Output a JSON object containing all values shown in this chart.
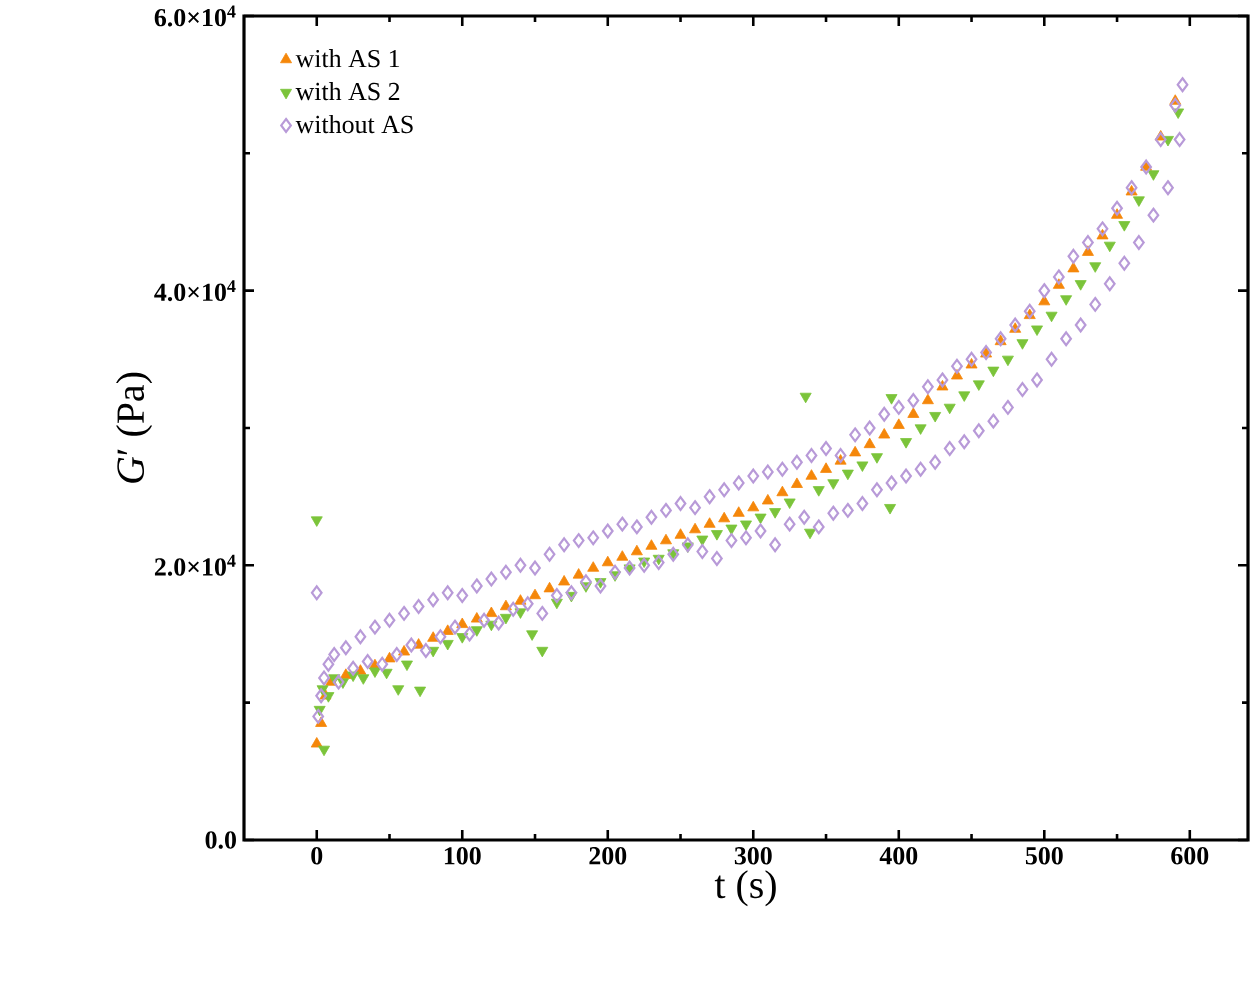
{
  "chart_data": {
    "type": "scatter",
    "xlabel": "t (s)",
    "ylabel": "*G*′ (Pa)",
    "xlim": [
      -50,
      640
    ],
    "ylim": [
      0,
      60000
    ],
    "xticks": [
      0,
      100,
      200,
      300,
      400,
      500,
      600
    ],
    "yticks": [
      {
        "value": 0,
        "label": "0.0"
      },
      {
        "value": 20000,
        "label": "2.0×10$^{4}$"
      },
      {
        "value": 40000,
        "label": "4.0×10$^{4}$"
      },
      {
        "value": 60000,
        "label": "6.0×10$^{4}$"
      }
    ],
    "legend": "top left",
    "grid": false,
    "series": [
      {
        "name": "with AS 1",
        "color": "#f5870a",
        "marker": "triangle",
        "x": [
          0,
          3,
          6,
          10,
          20,
          30,
          40,
          50,
          60,
          70,
          80,
          90,
          100,
          110,
          120,
          130,
          140,
          150,
          160,
          170,
          180,
          190,
          200,
          210,
          220,
          230,
          240,
          250,
          260,
          270,
          280,
          290,
          300,
          310,
          320,
          330,
          340,
          350,
          360,
          370,
          380,
          390,
          400,
          410,
          420,
          430,
          440,
          450,
          460,
          470,
          480,
          490,
          500,
          510,
          520,
          530,
          540,
          550,
          560,
          570,
          580,
          590
        ],
        "values": [
          7000,
          8500,
          10500,
          11500,
          12000,
          12300,
          12700,
          13200,
          13700,
          14200,
          14700,
          15200,
          15700,
          16100,
          16500,
          17000,
          17400,
          17800,
          18300,
          18800,
          19300,
          19800,
          20200,
          20600,
          21000,
          21400,
          21800,
          22200,
          22600,
          23000,
          23400,
          23800,
          24200,
          24700,
          25300,
          25900,
          26500,
          27000,
          27600,
          28200,
          28800,
          29500,
          30200,
          31000,
          32000,
          33000,
          33800,
          34600,
          35400,
          36300,
          37200,
          38200,
          39200,
          40400,
          41600,
          42800,
          44000,
          45500,
          47200,
          49000,
          51200,
          53800
        ]
      },
      {
        "name": "with AS 2",
        "color": "#7bc43a",
        "marker": "triangle down",
        "x": [
          0,
          2,
          4,
          5,
          8,
          12,
          18,
          25,
          32,
          40,
          48,
          56,
          62,
          71,
          80,
          90,
          100,
          110,
          120,
          130,
          140,
          148,
          155,
          165,
          175,
          185,
          195,
          205,
          215,
          225,
          235,
          245,
          255,
          265,
          275,
          285,
          295,
          305,
          315,
          325,
          336,
          339,
          345,
          355,
          365,
          375,
          385,
          394,
          395,
          405,
          415,
          425,
          435,
          445,
          455,
          465,
          475,
          485,
          495,
          505,
          515,
          525,
          535,
          545,
          555,
          565,
          575,
          585,
          592
        ],
        "values": [
          23300,
          9500,
          11000,
          6600,
          10500,
          11800,
          11500,
          12000,
          11800,
          12300,
          12200,
          11000,
          12800,
          10900,
          13800,
          14300,
          14800,
          15300,
          15700,
          16200,
          16600,
          15000,
          13800,
          17300,
          17800,
          18500,
          18800,
          19300,
          19800,
          20300,
          20500,
          20900,
          21400,
          21900,
          22300,
          22700,
          23000,
          23500,
          23900,
          24600,
          32300,
          22400,
          25500,
          26000,
          26700,
          27300,
          27900,
          24200,
          32200,
          29000,
          30000,
          30900,
          31500,
          32400,
          33200,
          34200,
          35000,
          36200,
          37200,
          38200,
          39400,
          40500,
          41800,
          43300,
          44800,
          46600,
          48500,
          51000,
          53000
        ]
      },
      {
        "name": "without AS",
        "color": "#b89ad8",
        "marker": "diamond",
        "x": [
          0,
          1,
          3,
          5,
          8,
          12,
          15,
          20,
          25,
          30,
          35,
          40,
          45,
          50,
          55,
          60,
          65,
          70,
          75,
          80,
          85,
          90,
          95,
          100,
          105,
          110,
          115,
          120,
          125,
          130,
          135,
          140,
          145,
          150,
          155,
          160,
          165,
          170,
          175,
          180,
          185,
          190,
          195,
          200,
          205,
          210,
          215,
          220,
          225,
          230,
          235,
          240,
          245,
          250,
          255,
          260,
          265,
          270,
          275,
          280,
          285,
          290,
          295,
          300,
          305,
          310,
          315,
          320,
          325,
          330,
          335,
          340,
          345,
          350,
          355,
          360,
          365,
          370,
          375,
          380,
          385,
          390,
          395,
          400,
          405,
          410,
          415,
          420,
          425,
          430,
          435,
          440,
          445,
          450,
          455,
          460,
          465,
          470,
          475,
          480,
          485,
          490,
          495,
          500,
          505,
          510,
          515,
          520,
          525,
          530,
          535,
          540,
          545,
          550,
          555,
          560,
          565,
          570,
          575,
          580,
          585,
          590,
          595,
          593
        ],
        "values": [
          18000,
          9000,
          10500,
          11800,
          12800,
          13500,
          11500,
          14000,
          12500,
          14800,
          13000,
          15500,
          12800,
          16000,
          13500,
          16500,
          14200,
          17000,
          13800,
          17500,
          14800,
          18000,
          15500,
          17800,
          15000,
          18500,
          16000,
          19000,
          15800,
          19500,
          16800,
          20000,
          17200,
          19800,
          16500,
          20800,
          17800,
          21500,
          18000,
          21800,
          18800,
          22000,
          18500,
          22500,
          19500,
          23000,
          19800,
          22800,
          20000,
          23500,
          20200,
          24000,
          20800,
          24500,
          21500,
          24200,
          21000,
          25000,
          20500,
          25500,
          21800,
          26000,
          22000,
          26500,
          22500,
          26800,
          21500,
          27000,
          23000,
          27500,
          23500,
          28000,
          22800,
          28500,
          23800,
          28000,
          24000,
          29500,
          24500,
          30000,
          25500,
          31000,
          26000,
          31500,
          26500,
          32000,
          27000,
          33000,
          27500,
          33500,
          28500,
          34500,
          29000,
          35000,
          29800,
          35500,
          30500,
          36500,
          31500,
          37500,
          32800,
          38500,
          33500,
          40000,
          35000,
          41000,
          36500,
          42500,
          37500,
          43500,
          39000,
          44500,
          40500,
          46000,
          42000,
          47500,
          43500,
          49000,
          45500,
          51000,
          47500,
          53500,
          55000,
          51000
        ]
      }
    ]
  }
}
